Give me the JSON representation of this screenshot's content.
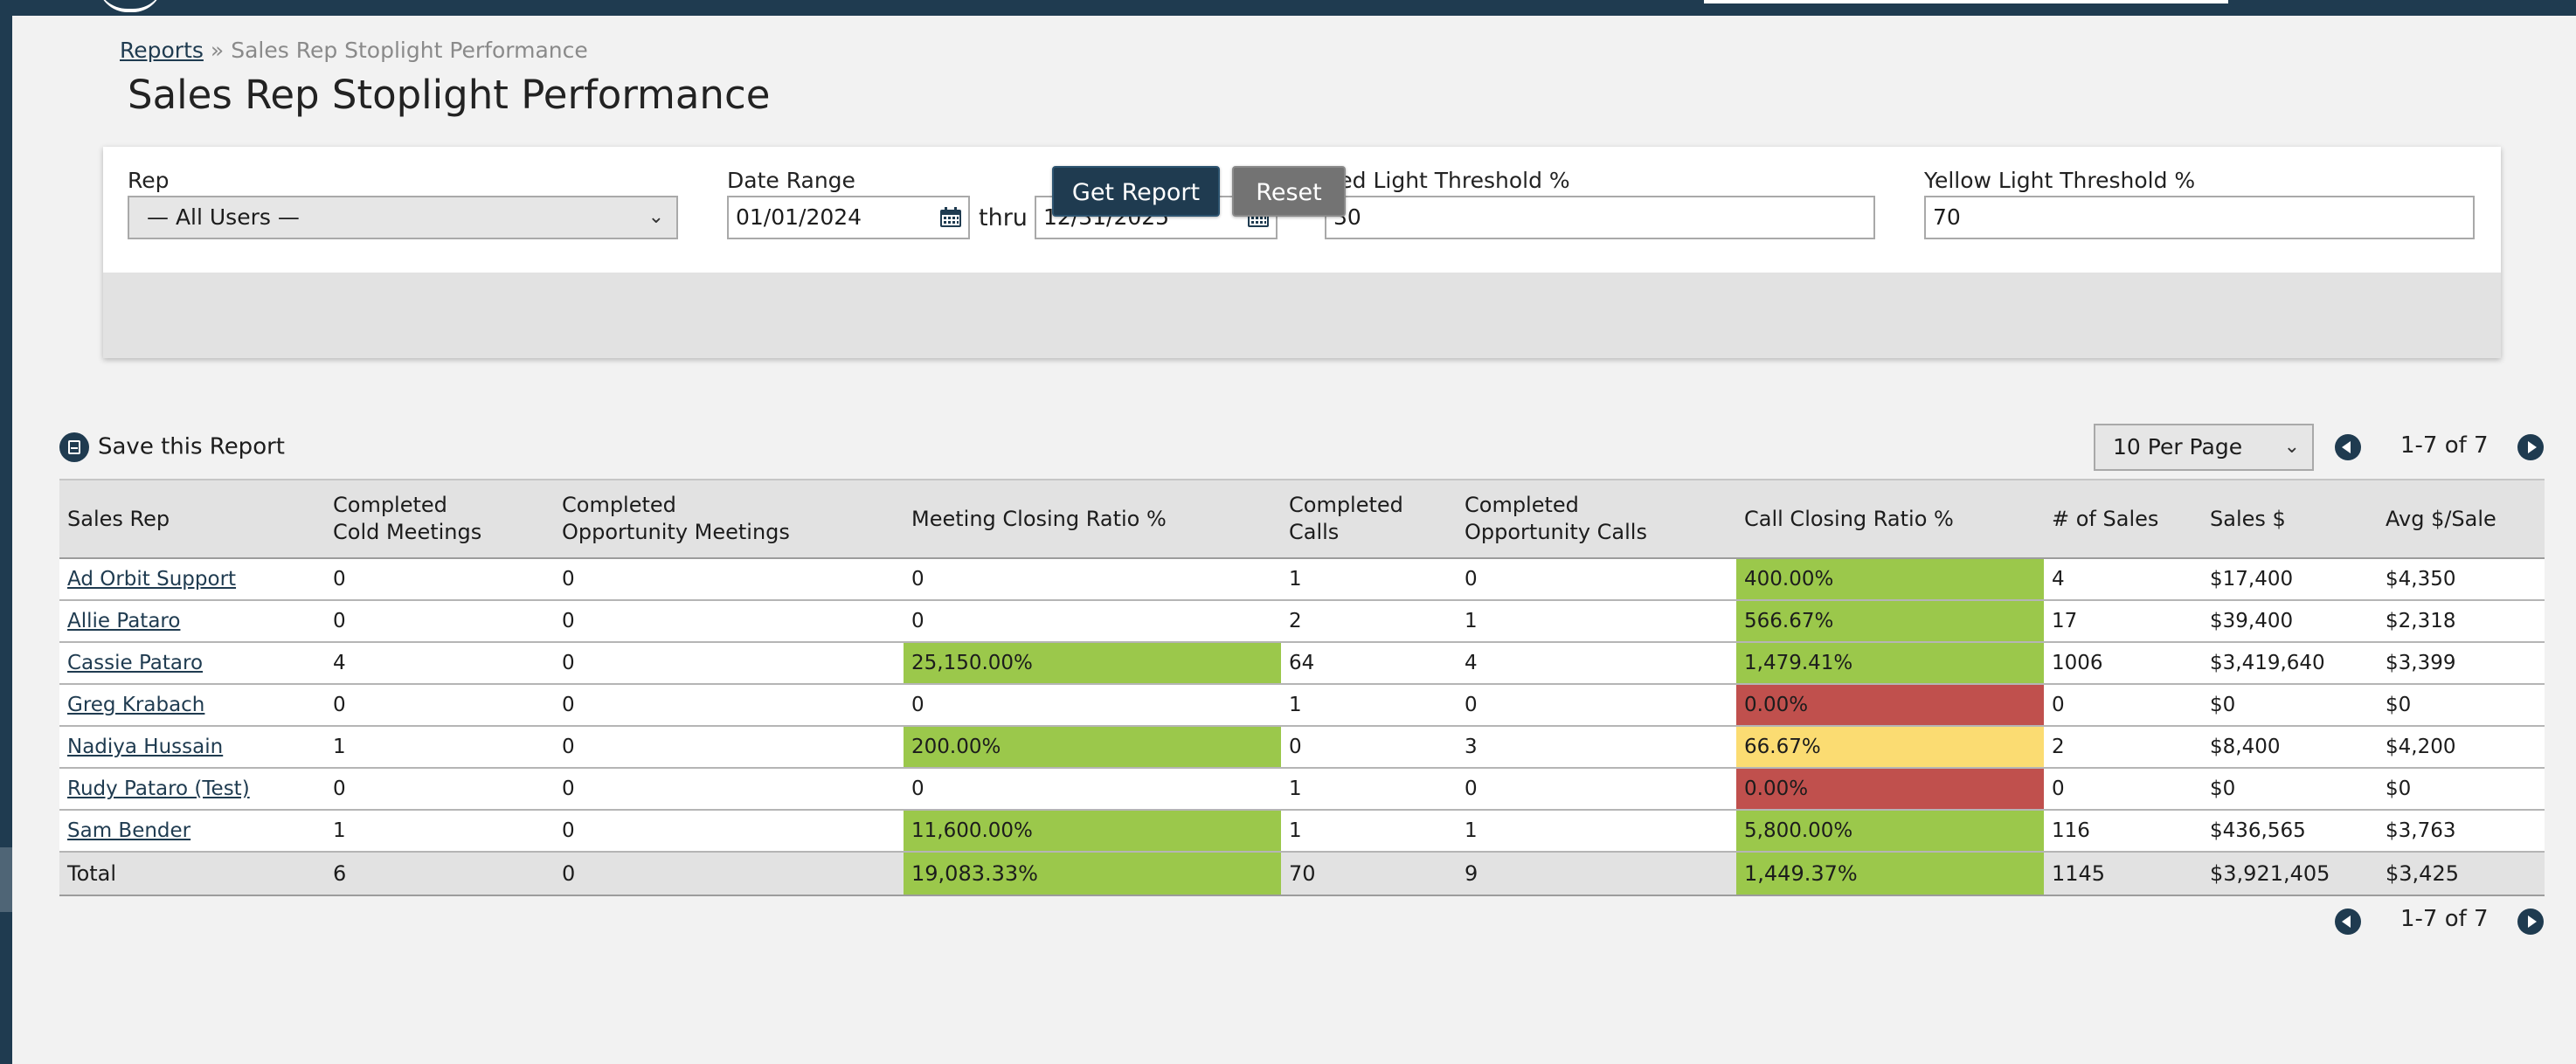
{
  "breadcrumb": {
    "parent": "Reports",
    "separator": "»",
    "current": "Sales Rep Stoplight Performance"
  },
  "page_title": "Sales Rep Stoplight Performance",
  "filters": {
    "rep_label": "Rep",
    "rep_value": "— All Users —",
    "date_range_label": "Date Range",
    "start_date": "01/01/2024",
    "thru_label": "thru",
    "end_date": "12/31/2025",
    "red_label": "Red Light Threshold %",
    "red_value": "30",
    "yellow_label": "Yellow Light Threshold %",
    "yellow_value": "70",
    "get_report_label": "Get Report",
    "reset_label": "Reset"
  },
  "save_report_label": "Save this Report",
  "per_page_value": "10 Per Page",
  "pagination_text": "1-7 of 7",
  "columns": [
    [
      "Sales Rep"
    ],
    [
      "Completed",
      "Cold Meetings"
    ],
    [
      "Completed",
      "Opportunity Meetings"
    ],
    [
      "Meeting Closing Ratio %"
    ],
    [
      "Completed",
      "Calls"
    ],
    [
      "Completed",
      "Opportunity Calls"
    ],
    [
      "Call Closing Ratio %"
    ],
    [
      "# of Sales"
    ],
    [
      "Sales $"
    ],
    [
      "Avg $/Sale"
    ]
  ],
  "rows": [
    {
      "rep": "Ad Orbit Support",
      "cold": "0",
      "opp_meetings": "0",
      "meeting_ratio": "0",
      "meeting_status": "",
      "calls": "1",
      "opp_calls": "0",
      "call_ratio": "400.00%",
      "call_status": "green",
      "sales_count": "4",
      "sales_amount": "$17,400",
      "avg_sale": "$4,350"
    },
    {
      "rep": "Allie Pataro",
      "cold": "0",
      "opp_meetings": "0",
      "meeting_ratio": "0",
      "meeting_status": "",
      "calls": "2",
      "opp_calls": "1",
      "call_ratio": "566.67%",
      "call_status": "green",
      "sales_count": "17",
      "sales_amount": "$39,400",
      "avg_sale": "$2,318"
    },
    {
      "rep": "Cassie Pataro",
      "cold": "4",
      "opp_meetings": "0",
      "meeting_ratio": "25,150.00%",
      "meeting_status": "green",
      "calls": "64",
      "opp_calls": "4",
      "call_ratio": "1,479.41%",
      "call_status": "green",
      "sales_count": "1006",
      "sales_amount": "$3,419,640",
      "avg_sale": "$3,399"
    },
    {
      "rep": "Greg Krabach",
      "cold": "0",
      "opp_meetings": "0",
      "meeting_ratio": "0",
      "meeting_status": "",
      "calls": "1",
      "opp_calls": "0",
      "call_ratio": "0.00%",
      "call_status": "red",
      "sales_count": "0",
      "sales_amount": "$0",
      "avg_sale": "$0"
    },
    {
      "rep": "Nadiya Hussain",
      "cold": "1",
      "opp_meetings": "0",
      "meeting_ratio": "200.00%",
      "meeting_status": "green",
      "calls": "0",
      "opp_calls": "3",
      "call_ratio": "66.67%",
      "call_status": "yellow",
      "sales_count": "2",
      "sales_amount": "$8,400",
      "avg_sale": "$4,200"
    },
    {
      "rep": "Rudy Pataro (Test)",
      "cold": "0",
      "opp_meetings": "0",
      "meeting_ratio": "0",
      "meeting_status": "",
      "calls": "1",
      "opp_calls": "0",
      "call_ratio": "0.00%",
      "call_status": "red",
      "sales_count": "0",
      "sales_amount": "$0",
      "avg_sale": "$0"
    },
    {
      "rep": "Sam Bender",
      "cold": "1",
      "opp_meetings": "0",
      "meeting_ratio": "11,600.00%",
      "meeting_status": "green",
      "calls": "1",
      "opp_calls": "1",
      "call_ratio": "5,800.00%",
      "call_status": "green",
      "sales_count": "116",
      "sales_amount": "$436,565",
      "avg_sale": "$3,763"
    }
  ],
  "total": {
    "label": "Total",
    "cold": "6",
    "opp_meetings": "0",
    "meeting_ratio": "19,083.33%",
    "meeting_status": "green",
    "calls": "70",
    "opp_calls": "9",
    "call_ratio": "1,449.37%",
    "call_status": "green",
    "sales_count": "1145",
    "sales_amount": "$3,921,405",
    "avg_sale": "$3,425"
  },
  "colors": {
    "green": "#9bc84b",
    "red": "#c0504d",
    "yellow": "#fbdc72",
    "brand": "#1f3b50"
  },
  "icons": {
    "calendar": "calendar-icon",
    "save": "save-disk-icon",
    "prev": "prev-page-icon",
    "next": "next-page-icon",
    "dropdown": "chevron-down-icon"
  }
}
